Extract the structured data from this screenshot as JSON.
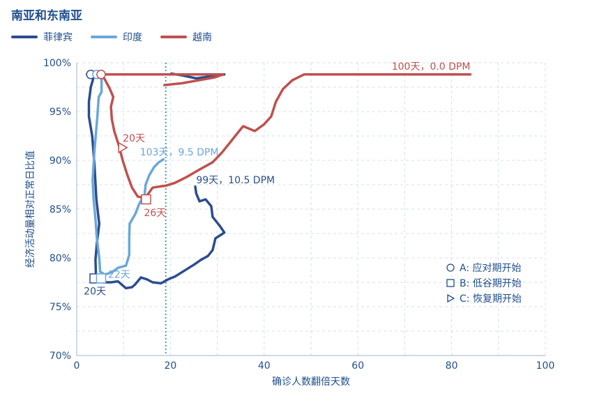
{
  "chart_data": {
    "type": "line",
    "title": "南亚和东南亚",
    "xlabel": "确诊人数翻倍天数",
    "ylabel": "经济活动量相对正常日比值",
    "xlim": [
      0,
      100
    ],
    "ylim": [
      70,
      100
    ],
    "x_ticks": [
      "0",
      "20",
      "40",
      "60",
      "80",
      "100"
    ],
    "y_ticks": [
      "70%",
      "75%",
      "80%",
      "85%",
      "90%",
      "95%",
      "100%"
    ],
    "vline_x": 19,
    "grid": true,
    "colors": {
      "菲律宾": "#2b4d8f",
      "印度": "#6ba7d8",
      "越南": "#c0504d"
    },
    "series": [
      {
        "name": "菲律宾",
        "points": [
          [
            2.2,
            98.8
          ],
          [
            3.0,
            98.8
          ],
          [
            3.6,
            98.5
          ],
          [
            3.0,
            97.5
          ],
          [
            2.6,
            96.0
          ],
          [
            2.6,
            94.5
          ],
          [
            3.3,
            92.5
          ],
          [
            3.8,
            89.5
          ],
          [
            4.2,
            86.0
          ],
          [
            4.8,
            83.5
          ],
          [
            4.3,
            81.5
          ],
          [
            4.0,
            79.8
          ],
          [
            4.1,
            78.2
          ],
          [
            5.5,
            77.5
          ],
          [
            7.3,
            77.5
          ],
          [
            8.8,
            77.6
          ],
          [
            10.5,
            76.9
          ],
          [
            11.8,
            77.0
          ],
          [
            12.5,
            77.3
          ],
          [
            13.7,
            78.0
          ],
          [
            15.0,
            77.8
          ],
          [
            16.2,
            77.5
          ],
          [
            18.0,
            77.4
          ],
          [
            19.5,
            77.8
          ],
          [
            21.0,
            78.1
          ],
          [
            23.0,
            78.7
          ],
          [
            25.0,
            79.3
          ],
          [
            26.5,
            79.8
          ],
          [
            28.0,
            80.2
          ],
          [
            29.0,
            80.8
          ],
          [
            29.6,
            82.0
          ],
          [
            31.5,
            82.6
          ],
          [
            30.5,
            83.3
          ],
          [
            29.0,
            84.2
          ],
          [
            28.7,
            85.3
          ],
          [
            27.5,
            86.0
          ],
          [
            26.2,
            85.8
          ],
          [
            25.5,
            86.6
          ],
          [
            25.3,
            87.3
          ]
        ],
        "label": "99天，10.5 DPM"
      },
      {
        "name": "印度",
        "points": [
          [
            4.3,
            98.8
          ],
          [
            5.3,
            98.3
          ],
          [
            5.3,
            97.0
          ],
          [
            4.7,
            96.5
          ],
          [
            4.4,
            94.5
          ],
          [
            3.8,
            91.0
          ],
          [
            3.4,
            88.0
          ],
          [
            3.6,
            86.0
          ],
          [
            4.0,
            84.0
          ],
          [
            4.3,
            82.0
          ],
          [
            4.8,
            80.0
          ],
          [
            5.0,
            78.6
          ],
          [
            6.0,
            78.3
          ],
          [
            7.4,
            78.5
          ],
          [
            8.9,
            79.0
          ],
          [
            10.5,
            79.2
          ],
          [
            11.2,
            80.3
          ],
          [
            11.2,
            82.0
          ],
          [
            11.3,
            83.5
          ],
          [
            12.5,
            84.5
          ],
          [
            13.3,
            85.5
          ],
          [
            14.5,
            86.5
          ],
          [
            14.7,
            87.5
          ],
          [
            15.5,
            88.5
          ],
          [
            16.5,
            89.3
          ],
          [
            17.5,
            89.8
          ],
          [
            18.5,
            90.1
          ]
        ],
        "label": "103天，9.5 DPM"
      },
      {
        "name": "越南",
        "points": [
          [
            5.2,
            98.8
          ],
          [
            6.0,
            98.3
          ],
          [
            7.0,
            97.4
          ],
          [
            7.8,
            96.5
          ],
          [
            7.3,
            95.5
          ],
          [
            7.5,
            94.2
          ],
          [
            8.0,
            93.0
          ],
          [
            9.0,
            91.5
          ],
          [
            9.8,
            90.0
          ],
          [
            10.8,
            88.5
          ],
          [
            11.8,
            87.2
          ],
          [
            13.0,
            86.3
          ],
          [
            14.6,
            86.1
          ],
          [
            15.3,
            86.6
          ],
          [
            16.2,
            87.2
          ],
          [
            17.5,
            87.3
          ],
          [
            19.0,
            87.4
          ],
          [
            21.0,
            87.7
          ],
          [
            23.5,
            88.3
          ],
          [
            26.0,
            89.0
          ],
          [
            29.0,
            89.8
          ],
          [
            31.0,
            90.8
          ],
          [
            33.0,
            92.0
          ],
          [
            35.5,
            93.5
          ],
          [
            38.0,
            93.0
          ],
          [
            40.0,
            93.7
          ],
          [
            41.5,
            94.5
          ],
          [
            42.5,
            96.0
          ],
          [
            44.0,
            97.3
          ],
          [
            46.0,
            98.2
          ],
          [
            48.5,
            98.8
          ],
          [
            84.0,
            98.8
          ]
        ],
        "label": "100天，0.0 DPM"
      }
    ],
    "philippines_top_loop": [
      [
        3.0,
        98.8
      ],
      [
        31.5,
        98.8
      ],
      [
        25.5,
        98.4
      ],
      [
        22.5,
        98.7
      ],
      [
        20.0,
        98.9
      ]
    ],
    "vietnam_top_loop": [
      [
        5.3,
        98.8
      ],
      [
        31.2,
        98.8
      ],
      [
        29.5,
        98.5
      ],
      [
        26.0,
        98.2
      ],
      [
        22.5,
        97.9
      ],
      [
        18.5,
        97.7
      ]
    ],
    "markers": [
      {
        "type": "circle",
        "x": 3.0,
        "y": 98.8,
        "series": "菲律宾"
      },
      {
        "type": "circle",
        "x": 4.3,
        "y": 98.8,
        "series": "印度"
      },
      {
        "type": "circle",
        "x": 5.2,
        "y": 98.8,
        "series": "越南"
      },
      {
        "type": "square",
        "x": 3.8,
        "y": 77.9,
        "series": "菲律宾",
        "label": "20天"
      },
      {
        "type": "square",
        "x": 5.2,
        "y": 77.9,
        "series": "印度",
        "label": "22天"
      },
      {
        "type": "square",
        "x": 14.8,
        "y": 86.0,
        "series": "越南",
        "label": "26天"
      },
      {
        "type": "triangle",
        "x": 9.7,
        "y": 91.3,
        "series": "越南",
        "label": "20天"
      }
    ],
    "marker_legend": [
      "A: 应对期开始",
      "B: 低谷期开始",
      "C: 恢复期开始"
    ]
  }
}
